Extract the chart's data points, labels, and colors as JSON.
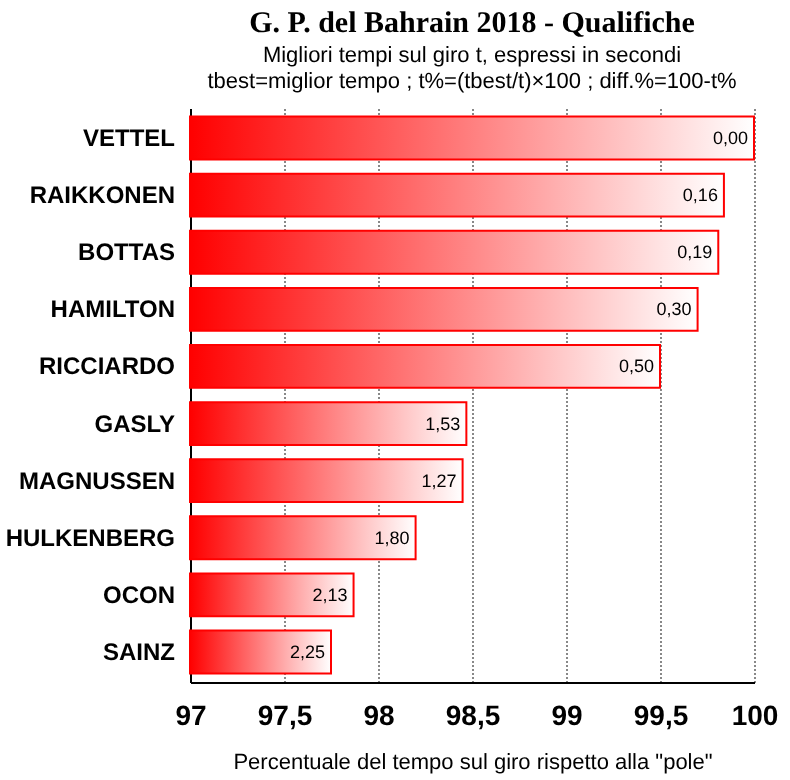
{
  "chart_data": {
    "type": "bar",
    "orientation": "horizontal",
    "title": "G. P. del Bahrain 2018 - Qualifiche",
    "subtitle": "Migliori tempi sul giro t, espressi in secondi\ntbest=miglior tempo ; t%=(tbest/t)×100 ; diff.%=100-t%",
    "xlabel": "Percentuale del tempo sul giro rispetto alla \"pole\"",
    "categories": [
      "VETTEL",
      "RAIKKONEN",
      "BOTTAS",
      "HAMILTON",
      "RICCIARDO",
      "GASLY",
      "MAGNUSSEN",
      "HULKENBERG",
      "OCON",
      "SAINZ"
    ],
    "values": [
      100,
      99.84,
      99.81,
      99.7,
      99.5,
      98.47,
      98.45,
      98.2,
      97.87,
      97.75
    ],
    "annotations": [
      {
        "text": "0,00",
        "x": 100,
        "y": "VETTEL"
      },
      {
        "text": "0,16",
        "x": 99.84,
        "y": "RAIKKONEN"
      },
      {
        "text": "0,19",
        "x": 99.81,
        "y": "BOTTAS"
      },
      {
        "text": "0,30",
        "x": 99.7,
        "y": "HAMILTON"
      },
      {
        "text": "0,50",
        "x": 99.5,
        "y": "RICCIARDO"
      },
      {
        "text": "1,53",
        "x": 98.47,
        "y": "GASLY"
      },
      {
        "text": "1,27",
        "x": 98.45,
        "y": "MAGNUSSEN"
      },
      {
        "text": "1,80",
        "x": 98.2,
        "y": "HULKENBERG"
      },
      {
        "text": "2,13",
        "x": 97.87,
        "y": "OCON"
      },
      {
        "text": "2,25",
        "x": 97.75,
        "y": "SAINZ"
      }
    ],
    "color": "#ff0000",
    "xlim": [
      97,
      100
    ],
    "xticks": [
      97,
      {
        "value": 97.5,
        "label": "97,5"
      },
      98,
      {
        "value": 98.5,
        "label": "98,5"
      },
      99,
      {
        "value": 99.5,
        "label": "99,5"
      },
      100
    ],
    "grid": "x"
  }
}
